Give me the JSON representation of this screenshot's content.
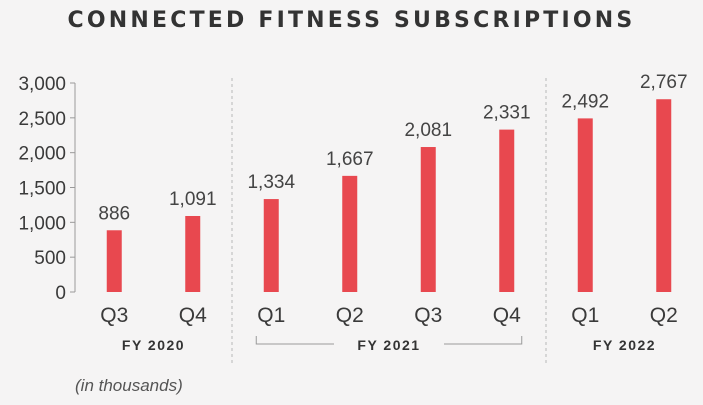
{
  "chart_data": {
    "type": "bar",
    "title": "CONNECTED FITNESS SUBSCRIPTIONS",
    "categories": [
      "Q3",
      "Q4",
      "Q1",
      "Q2",
      "Q3",
      "Q4",
      "Q1",
      "Q2"
    ],
    "values": [
      886,
      1091,
      1334,
      1667,
      2081,
      2331,
      2492,
      2767
    ],
    "value_labels": [
      "886",
      "1,091",
      "1,334",
      "1,667",
      "2,081",
      "2,331",
      "2,492",
      "2,767"
    ],
    "groups": [
      {
        "label": "FY 2020",
        "start": 0,
        "end": 1
      },
      {
        "label": "FY 2021",
        "start": 2,
        "end": 5
      },
      {
        "label": "FY 2022",
        "start": 6,
        "end": 7
      }
    ],
    "ylim": [
      0,
      3000
    ],
    "yticks": [
      0,
      500,
      1000,
      1500,
      2000,
      2500,
      3000
    ],
    "ytick_labels": [
      "0",
      "500",
      "1,000",
      "1,500",
      "2,000",
      "2,500",
      "3,000"
    ],
    "note": "(in thousands)",
    "bar_color": "#e8484f",
    "grid": false
  }
}
